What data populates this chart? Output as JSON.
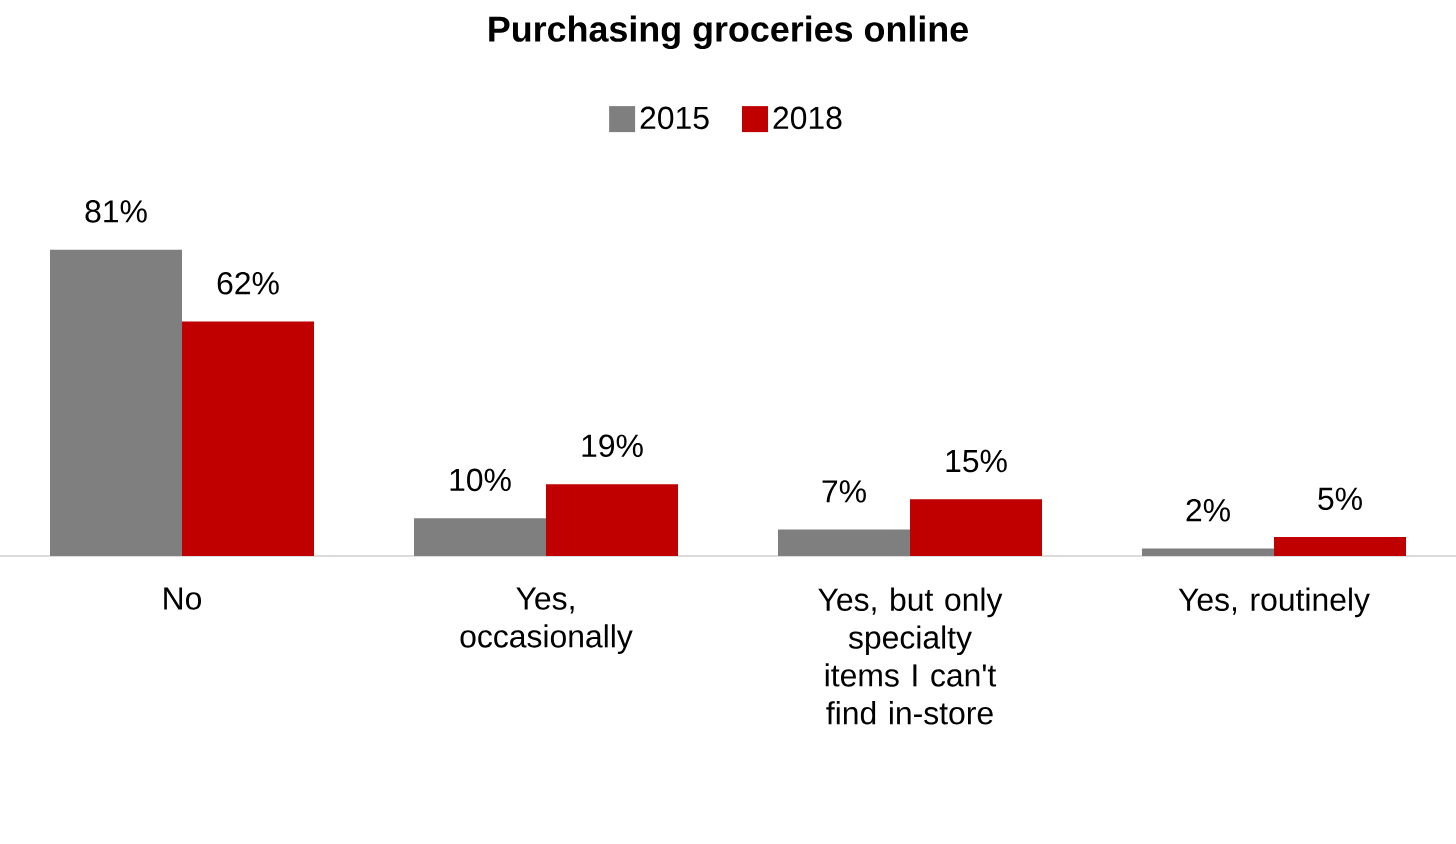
{
  "chart_data": {
    "type": "bar",
    "title": "**Purchasing  groceries online**",
    "categories": [
      "No",
      "Yes, occasionally",
      "Yes, but only specialty items I can't find in-store",
      "Yes, routinely"
    ],
    "series": [
      {
        "name": "2015",
        "color": "#7f7f7f",
        "values": [
          81,
          10,
          7,
          2
        ],
        "value_labels": [
          "81%",
          "10%",
          "7%",
          "2%"
        ]
      },
      {
        "name": "2018",
        "color": "#c00000",
        "values": [
          62,
          19,
          15,
          5
        ],
        "value_labels": [
          "62%",
          "19%",
          "15%",
          "5%"
        ]
      }
    ],
    "legend": "top"
  }
}
